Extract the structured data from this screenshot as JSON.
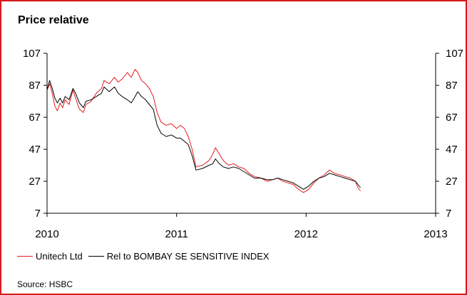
{
  "chart_data": {
    "type": "line",
    "title": "Price relative",
    "source": "Source: HSBC",
    "x_range": [
      2010,
      2013
    ],
    "y_range": [
      7,
      107
    ],
    "y_ticks": [
      7,
      27,
      47,
      67,
      87,
      107
    ],
    "x_ticks": [
      2010,
      2011,
      2012,
      2013
    ],
    "grid": false,
    "legend_position": "bottom-left",
    "series": [
      {
        "name": "Unitech Ltd",
        "color": "#e41a1c",
        "points": [
          [
            2010.0,
            84
          ],
          [
            2010.02,
            88
          ],
          [
            2010.04,
            82
          ],
          [
            2010.06,
            74
          ],
          [
            2010.08,
            71
          ],
          [
            2010.1,
            76
          ],
          [
            2010.12,
            73
          ],
          [
            2010.14,
            78
          ],
          [
            2010.17,
            75
          ],
          [
            2010.2,
            84
          ],
          [
            2010.22,
            79
          ],
          [
            2010.25,
            72
          ],
          [
            2010.28,
            70
          ],
          [
            2010.3,
            75
          ],
          [
            2010.34,
            77
          ],
          [
            2010.38,
            82
          ],
          [
            2010.42,
            85
          ],
          [
            2010.44,
            90
          ],
          [
            2010.48,
            88
          ],
          [
            2010.52,
            92
          ],
          [
            2010.55,
            89
          ],
          [
            2010.58,
            91
          ],
          [
            2010.62,
            95
          ],
          [
            2010.65,
            92
          ],
          [
            2010.68,
            97
          ],
          [
            2010.7,
            95
          ],
          [
            2010.73,
            90
          ],
          [
            2010.76,
            88
          ],
          [
            2010.79,
            85
          ],
          [
            2010.82,
            80
          ],
          [
            2010.85,
            70
          ],
          [
            2010.88,
            64
          ],
          [
            2010.92,
            62
          ],
          [
            2010.96,
            63
          ],
          [
            2011.0,
            60
          ],
          [
            2011.03,
            62
          ],
          [
            2011.06,
            60
          ],
          [
            2011.09,
            55
          ],
          [
            2011.12,
            47
          ],
          [
            2011.15,
            36
          ],
          [
            2011.2,
            37
          ],
          [
            2011.25,
            40
          ],
          [
            2011.28,
            44
          ],
          [
            2011.3,
            48
          ],
          [
            2011.33,
            44
          ],
          [
            2011.36,
            40
          ],
          [
            2011.4,
            37
          ],
          [
            2011.44,
            38
          ],
          [
            2011.48,
            36
          ],
          [
            2011.52,
            35
          ],
          [
            2011.56,
            32
          ],
          [
            2011.6,
            30
          ],
          [
            2011.65,
            29
          ],
          [
            2011.7,
            27
          ],
          [
            2011.74,
            28
          ],
          [
            2011.78,
            29
          ],
          [
            2011.82,
            27
          ],
          [
            2011.86,
            26
          ],
          [
            2011.9,
            25
          ],
          [
            2011.94,
            22
          ],
          [
            2011.98,
            20
          ],
          [
            2012.02,
            22
          ],
          [
            2012.06,
            26
          ],
          [
            2012.1,
            29
          ],
          [
            2012.14,
            31
          ],
          [
            2012.18,
            34
          ],
          [
            2012.22,
            32
          ],
          [
            2012.26,
            31
          ],
          [
            2012.3,
            30
          ],
          [
            2012.34,
            29
          ],
          [
            2012.38,
            27
          ],
          [
            2012.4,
            23
          ],
          [
            2012.42,
            21
          ]
        ]
      },
      {
        "name": "Rel to BOMBAY SE SENSITIVE INDEX",
        "color": "#000000",
        "points": [
          [
            2010.0,
            84
          ],
          [
            2010.02,
            90
          ],
          [
            2010.04,
            85
          ],
          [
            2010.06,
            79
          ],
          [
            2010.08,
            76
          ],
          [
            2010.1,
            79
          ],
          [
            2010.12,
            76
          ],
          [
            2010.14,
            80
          ],
          [
            2010.17,
            78
          ],
          [
            2010.2,
            85
          ],
          [
            2010.22,
            82
          ],
          [
            2010.25,
            76
          ],
          [
            2010.28,
            73
          ],
          [
            2010.3,
            77
          ],
          [
            2010.34,
            78
          ],
          [
            2010.38,
            80
          ],
          [
            2010.42,
            82
          ],
          [
            2010.44,
            86
          ],
          [
            2010.48,
            83
          ],
          [
            2010.52,
            86
          ],
          [
            2010.55,
            82
          ],
          [
            2010.58,
            80
          ],
          [
            2010.62,
            78
          ],
          [
            2010.65,
            76
          ],
          [
            2010.68,
            80
          ],
          [
            2010.7,
            83
          ],
          [
            2010.73,
            80
          ],
          [
            2010.76,
            78
          ],
          [
            2010.79,
            75
          ],
          [
            2010.82,
            72
          ],
          [
            2010.85,
            62
          ],
          [
            2010.88,
            57
          ],
          [
            2010.92,
            55
          ],
          [
            2010.96,
            56
          ],
          [
            2011.0,
            54
          ],
          [
            2011.03,
            54
          ],
          [
            2011.06,
            52
          ],
          [
            2011.09,
            50
          ],
          [
            2011.12,
            43
          ],
          [
            2011.15,
            34
          ],
          [
            2011.2,
            35
          ],
          [
            2011.25,
            37
          ],
          [
            2011.28,
            38
          ],
          [
            2011.3,
            41
          ],
          [
            2011.33,
            38
          ],
          [
            2011.36,
            36
          ],
          [
            2011.4,
            35
          ],
          [
            2011.44,
            36
          ],
          [
            2011.48,
            35
          ],
          [
            2011.52,
            33
          ],
          [
            2011.56,
            31
          ],
          [
            2011.6,
            29
          ],
          [
            2011.65,
            29
          ],
          [
            2011.7,
            28
          ],
          [
            2011.74,
            28
          ],
          [
            2011.78,
            29
          ],
          [
            2011.82,
            28
          ],
          [
            2011.86,
            27
          ],
          [
            2011.9,
            26
          ],
          [
            2011.94,
            24
          ],
          [
            2011.98,
            22
          ],
          [
            2012.02,
            24
          ],
          [
            2012.06,
            27
          ],
          [
            2012.1,
            29
          ],
          [
            2012.14,
            30
          ],
          [
            2012.18,
            32
          ],
          [
            2012.22,
            31
          ],
          [
            2012.26,
            30
          ],
          [
            2012.3,
            29
          ],
          [
            2012.34,
            28
          ],
          [
            2012.38,
            27
          ],
          [
            2012.4,
            25
          ],
          [
            2012.42,
            23
          ]
        ]
      }
    ]
  }
}
